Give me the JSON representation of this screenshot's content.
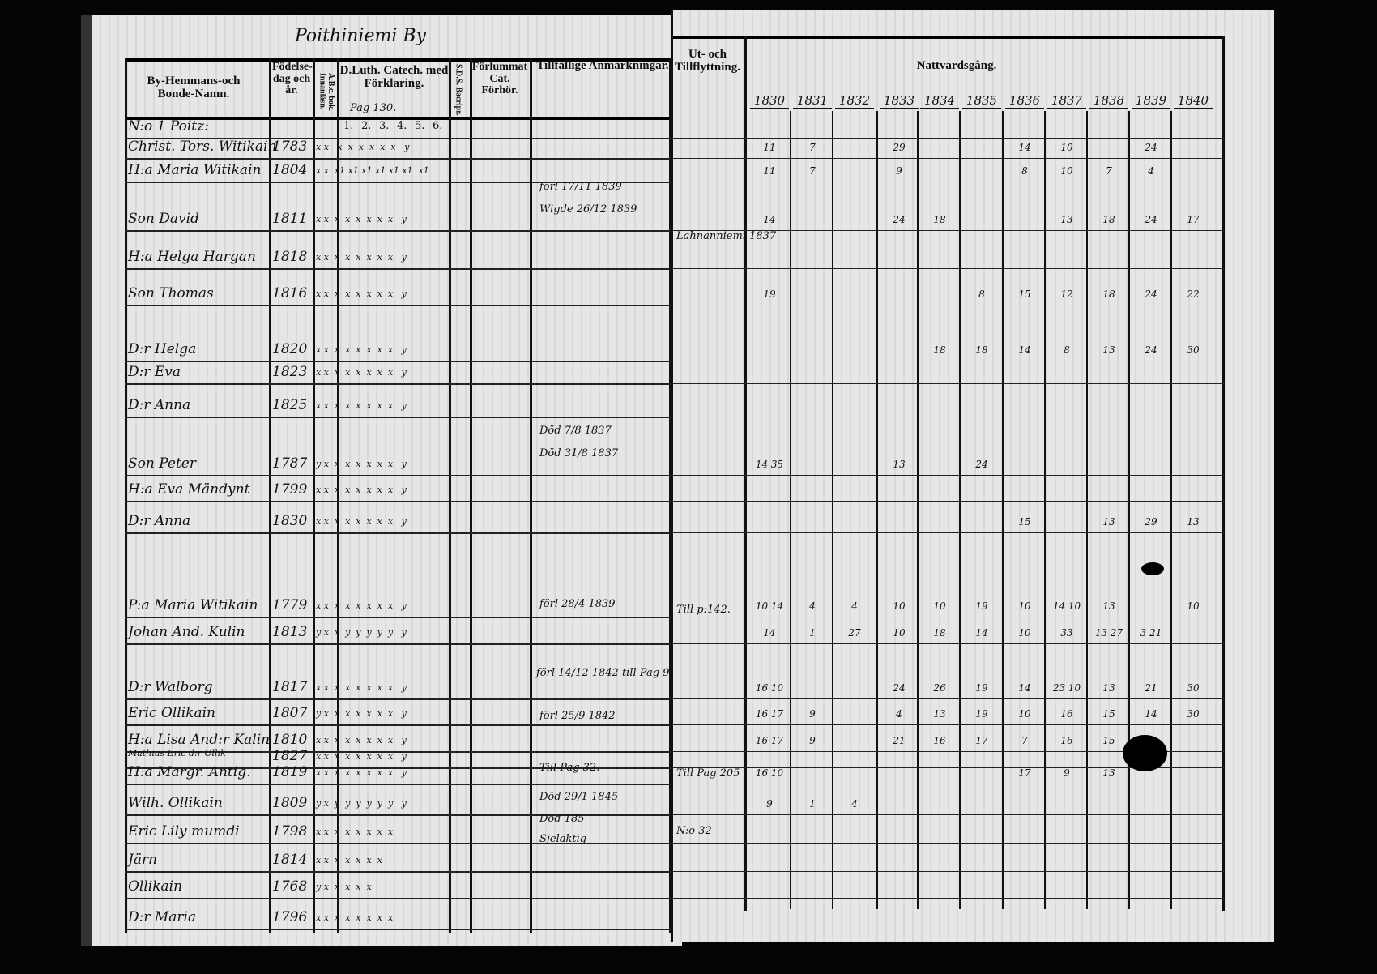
{
  "left_page": {
    "title": "Poithiniemi By",
    "headers": {
      "name": "By-Hemmans-och Bonde-Namn.",
      "birth": "Födelse-dag och år.",
      "abc": "A.B.c. bok. Innanläsn.",
      "catechism": "D.Luth. Catech. med Förklaring.",
      "catechism_page": "Pag 130.",
      "catechism_parts": [
        "1.",
        "2.",
        "3.",
        "4.",
        "5.",
        "6."
      ],
      "sds": "S.D.S. Bacripr.",
      "missed": "Förlummat Cat. Förhör.",
      "remarks": "Tillfällige Anmärkningar."
    },
    "rows": [
      {
        "name": "N:o 1 Poitz:",
        "birth": "",
        "marks": ""
      },
      {
        "name": "Christ. Tors. Witikain",
        "birth": "1783",
        "marks": "x x   x  x  x  x  x  x   y"
      },
      {
        "name": "H:a Maria Witikain",
        "birth": "1804",
        "marks": "x x  x1 x1 x1 x1 x1 x1  x1"
      },
      {
        "name": "Son David",
        "birth": "1811",
        "marks": "x x  x  x  x  x  x  x   y"
      },
      {
        "name": "H:a Helga Hargan",
        "birth": "1818",
        "marks": "x x  x  x  x  x  x  x   y"
      },
      {
        "name": "Son Thomas",
        "birth": "1816",
        "marks": "x x  x  x  x  x  x  x   y"
      },
      {
        "name": "D:r Helga",
        "birth": "1820",
        "marks": "x x  x  x  x  x  x  x   y"
      },
      {
        "name": "D:r Eva",
        "birth": "1823",
        "marks": "x x  x  x  x  x  x  x   y"
      },
      {
        "name": "D:r Anna",
        "birth": "1825",
        "marks": "x x  x  x  x  x  x  x   y"
      },
      {
        "name": "Son Peter",
        "birth": "1787",
        "marks": "y x  x  x  x  x  x  x   y"
      },
      {
        "name": "H:a Eva Mändynt",
        "birth": "1799",
        "marks": "x x  x  x  x  x  x  x   y"
      },
      {
        "name": "D:r Anna",
        "birth": "1830",
        "marks": "x x  x  x  x  x  x  x   y"
      },
      {
        "name": "P:a Maria Witikain",
        "birth": "1779",
        "marks": "x x  x  x  x  x  x  x   y"
      },
      {
        "name": "Johan And. Kulin",
        "birth": "1813",
        "marks": "y x  x  y  y  y  y  y   y"
      },
      {
        "name": "D:r Walborg",
        "birth": "1817",
        "marks": "x x  x  x  x  x  x  x   y"
      },
      {
        "name": "Eric Ollikain",
        "birth": "1807",
        "marks": "y x  x  x  x  x  x  x   y"
      },
      {
        "name": "H:a Lisa And:r Kalin",
        "birth": "1810",
        "marks": "x x  x  x  x  x  x  x   y"
      },
      {
        "name": "Mathias Eric d:r Ollik",
        "birth": "1827",
        "marks": "x x  x  x  x  x  x  x   y"
      },
      {
        "name": "H:a Margr. Antig.",
        "birth": "1819",
        "marks": "x x  x  x  x  x  x  x   y"
      },
      {
        "name": "Wilh. Ollikain",
        "birth": "1809",
        "marks": "y x  y  y  y  y  y  y   y"
      },
      {
        "name": "Eric Lily mumdi",
        "birth": "1798",
        "marks": "x x  x  x  x  x  x  x"
      },
      {
        "name": "Järn",
        "birth": "1814",
        "marks": "x x  x  x  x  x  x"
      },
      {
        "name": "Ollikain",
        "birth": "1768",
        "marks": "y x  x  x  x  x"
      },
      {
        "name": "D:r Maria",
        "birth": "1796",
        "marks": "x x  x  x  x  x  x  x"
      }
    ],
    "remarks": [
      "förl 17/11 1839",
      "Wigde 26/12 1839",
      "Död 7/8 1837",
      "Död 31/8 1837",
      "förl 28/4 1839",
      "förl 14/12 1842 till Pag 9.—",
      "förl 25/9 1842",
      "Till Pag 32.",
      "Död 29/1 1845",
      "Död 185",
      "Sjelaktig"
    ]
  },
  "right_page": {
    "headers": {
      "moves": "Ut- och Tillflyttning.",
      "communion": "Nattvardsgång."
    },
    "years": [
      "1830",
      "1831",
      "1832",
      "1833",
      "1834",
      "1835",
      "1836",
      "1837",
      "1838",
      "1839",
      "1840"
    ],
    "moves": [
      "Lahnanniemi 1837",
      "Till p:142.",
      "Till Pag 205",
      "N:o 32"
    ],
    "communion_rows": [
      {
        "row": 1,
        "values": [
          "11",
          "7",
          "",
          "29",
          "",
          "",
          "14",
          "10",
          "",
          "24",
          ""
        ]
      },
      {
        "row": 2,
        "values": [
          "11",
          "7",
          "",
          "9",
          "",
          "",
          "8",
          "10",
          "7",
          "4",
          ""
        ]
      },
      {
        "row": 3,
        "values": [
          "14",
          "",
          "",
          "24",
          "18",
          "",
          "",
          "13",
          "18",
          "24",
          "17"
        ]
      },
      {
        "row": 5,
        "values": [
          "19",
          "",
          "",
          "",
          "",
          "8",
          "15",
          "12",
          "18",
          "24",
          "22"
        ]
      },
      {
        "row": 6,
        "values": [
          "",
          "",
          "",
          "",
          "18",
          "18",
          "14",
          "8",
          "13",
          "24",
          "30"
        ]
      },
      {
        "row": 9,
        "values": [
          "14 35",
          "",
          "",
          "13",
          "",
          "24",
          "",
          "",
          "",
          "",
          ""
        ]
      },
      {
        "row": 11,
        "values": [
          "",
          "",
          "",
          "",
          "",
          "",
          "15",
          "",
          "13",
          "29",
          "13"
        ]
      },
      {
        "row": 12,
        "values": [
          "10 14",
          "4",
          "4",
          "10",
          "10",
          "19",
          "10",
          "14 10",
          "13",
          "",
          "10"
        ]
      },
      {
        "row": 13,
        "values": [
          "14",
          "1",
          "27",
          "10",
          "18",
          "14",
          "10",
          "33",
          "13 27",
          "3 21",
          ""
        ]
      },
      {
        "row": 14,
        "values": [
          "16 10",
          "",
          "",
          "24",
          "26",
          "19",
          "14",
          "23 10",
          "13",
          "21",
          "30"
        ]
      },
      {
        "row": 15,
        "values": [
          "16 17",
          "9",
          "",
          "4",
          "13",
          "19",
          "10",
          "16",
          "15",
          "14",
          "30"
        ]
      },
      {
        "row": 16,
        "values": [
          "16 17",
          "9",
          "",
          "21",
          "16",
          "17",
          "7",
          "16",
          "15",
          "14",
          ""
        ]
      },
      {
        "row": 18,
        "values": [
          "16 10",
          "",
          "",
          "",
          "",
          "",
          "17",
          "9",
          "13",
          "",
          ""
        ]
      },
      {
        "row": 19,
        "values": [
          "9",
          "1",
          "4",
          "",
          "",
          "",
          "",
          "",
          "",
          "",
          ""
        ]
      }
    ]
  },
  "colors": {
    "paper": "#e6e6e4",
    "ink": "#111111",
    "background": "#050505"
  }
}
